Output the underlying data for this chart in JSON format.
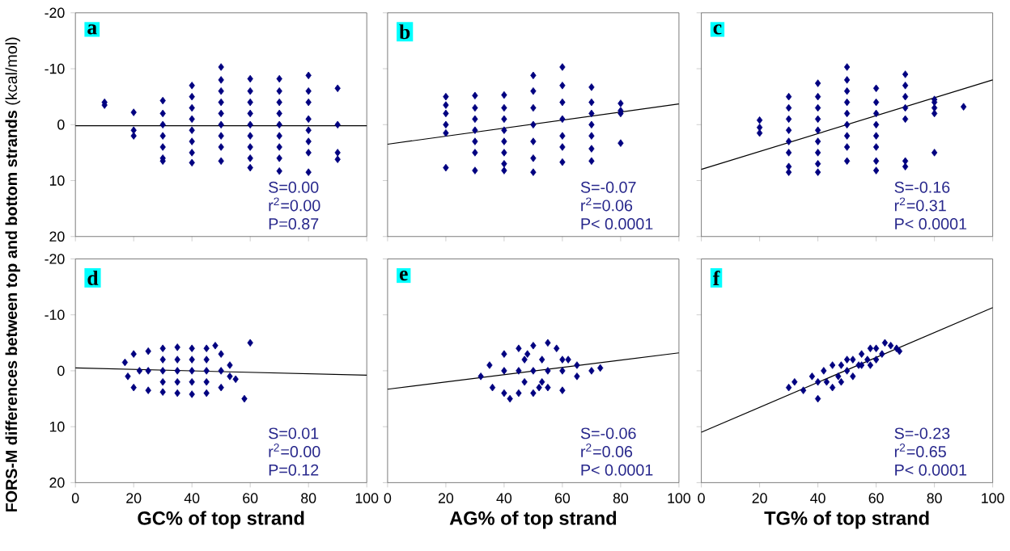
{
  "chart_data": [
    {
      "type": "scatter",
      "title": "a",
      "ylabel": "**FORS-M differences between top and bottom strands** (kcal/mol)",
      "xlim": [
        0,
        100
      ],
      "xticks": [
        0,
        20,
        40,
        60,
        80,
        100
      ],
      "ylim": [
        20,
        -20
      ],
      "yticks": [
        -20,
        -10,
        0,
        10,
        20
      ],
      "tick_labels": "y",
      "annotations": [
        "S=0.00",
        "r$^{2}$=0.00",
        "P=0.87"
      ],
      "series": [
        {
          "type": "scatter",
          "marker": "diamond",
          "color": "#000080",
          "x": [
            10,
            10,
            20,
            20,
            20,
            30,
            30,
            30,
            30,
            30,
            30,
            30,
            40,
            40,
            40,
            40,
            40,
            40,
            40,
            40,
            50,
            50,
            50,
            50,
            50,
            50,
            50,
            50,
            50,
            60,
            60,
            60,
            60,
            60,
            60,
            60,
            60,
            60,
            70,
            70,
            70,
            70,
            70,
            70,
            70,
            70,
            70,
            80,
            80,
            80,
            80,
            80,
            80,
            80,
            80,
            90,
            90,
            90,
            90
          ],
          "values": [
            -4,
            -3.5,
            -2.2,
            1,
            2,
            -4.3,
            -2,
            0,
            2,
            4,
            6,
            6.5,
            -7,
            -5,
            -3,
            -1,
            1,
            3,
            5,
            6.8,
            -10.3,
            -8,
            -6,
            -4,
            -2,
            0,
            2,
            4,
            6.5,
            -8.2,
            -6,
            -4,
            -2,
            0,
            2,
            4,
            6,
            7.7,
            -8.2,
            -6,
            -4,
            -2,
            0,
            2,
            4,
            6,
            8.3,
            -8.8,
            -6,
            -4,
            -1,
            1,
            3,
            5,
            8.5,
            -6.5,
            0,
            5,
            6.2
          ]
        },
        {
          "type": "line",
          "color": "#000000",
          "x": [
            0,
            100
          ],
          "values": [
            0.2,
            0.2
          ]
        }
      ]
    },
    {
      "type": "scatter",
      "title": "b",
      "xlim": [
        0,
        100
      ],
      "xticks": [
        0,
        20,
        40,
        60,
        80,
        100
      ],
      "ylim": [
        20,
        -20
      ],
      "yticks": [
        -20,
        -10,
        0,
        10,
        20
      ],
      "tick_labels": false,
      "annotations": [
        "S=-0.07",
        "r$^{2}$=0.06",
        "P< 0.0001"
      ],
      "series": [
        {
          "type": "scatter",
          "marker": "diamond",
          "color": "#000080",
          "x": [
            20,
            20,
            20,
            20,
            20,
            20,
            30,
            30,
            30,
            30,
            30,
            30,
            30,
            40,
            40,
            40,
            40,
            40,
            40,
            40,
            40,
            50,
            50,
            50,
            50,
            50,
            50,
            50,
            60,
            60,
            60,
            60,
            60,
            60,
            60,
            70,
            70,
            70,
            70,
            70,
            70,
            70,
            80,
            80,
            80,
            80
          ],
          "values": [
            -5,
            -3.5,
            -2,
            0,
            1.5,
            7.7,
            -5.2,
            -3,
            -1,
            1,
            3,
            5,
            8.2,
            -5.3,
            -3,
            -1,
            1,
            3,
            5,
            7,
            8.2,
            -8.8,
            -6,
            -3,
            0,
            3,
            6,
            8.5,
            -10.3,
            -7,
            -4,
            -1,
            2,
            4,
            6.7,
            -6.7,
            -4,
            -2,
            0,
            2,
            4.3,
            6.5,
            -3.8,
            -2.5,
            -2,
            3.3
          ]
        },
        {
          "type": "line",
          "color": "#000000",
          "x": [
            0,
            100
          ],
          "values": [
            3.5,
            -3.7
          ]
        }
      ]
    },
    {
      "type": "scatter",
      "title": "c",
      "xlim": [
        0,
        100
      ],
      "xticks": [
        0,
        20,
        40,
        60,
        80,
        100
      ],
      "ylim": [
        20,
        -20
      ],
      "yticks": [
        -20,
        -10,
        0,
        10,
        20
      ],
      "tick_labels": false,
      "annotations": [
        "S=-0.16",
        "r$^{2}$=0.31",
        "P< 0.0001"
      ],
      "series": [
        {
          "type": "scatter",
          "marker": "diamond",
          "color": "#000080",
          "x": [
            20,
            20,
            20,
            30,
            30,
            30,
            30,
            30,
            30,
            30,
            30,
            40,
            40,
            40,
            40,
            40,
            40,
            40,
            40,
            40,
            50,
            50,
            50,
            50,
            50,
            50,
            50,
            50,
            50,
            60,
            60,
            60,
            60,
            60,
            60,
            60,
            60,
            70,
            70,
            70,
            70,
            70,
            70,
            70,
            80,
            80,
            80,
            80,
            80,
            90
          ],
          "values": [
            -0.8,
            0.5,
            1.5,
            -5,
            -3,
            -1,
            1,
            3,
            5,
            7.5,
            8.5,
            -7.4,
            -5,
            -3,
            -1,
            1,
            3,
            5,
            7,
            8.5,
            -10.3,
            -8,
            -6,
            -4,
            -2,
            0,
            2,
            4,
            6.5,
            -6.5,
            -4,
            -2,
            0,
            2,
            4,
            6.5,
            8.2,
            -9,
            -7,
            -5,
            -3,
            -1,
            6.5,
            7.5,
            -4.5,
            -4,
            -3,
            -2,
            5,
            -3.2
          ]
        },
        {
          "type": "line",
          "color": "#000000",
          "x": [
            0,
            100
          ],
          "values": [
            8,
            -8
          ]
        }
      ]
    },
    {
      "type": "scatter",
      "title": "d",
      "xlabel": "GC% of top strand",
      "xlim": [
        0,
        100
      ],
      "xticks": [
        0,
        20,
        40,
        60,
        80,
        100
      ],
      "ylim": [
        20,
        -20
      ],
      "yticks": [
        -20,
        -10,
        0,
        10,
        20
      ],
      "annotations": [
        "S=0.01",
        "r$^{2}$=0.00",
        "P=0.12"
      ],
      "series": [
        {
          "type": "scatter",
          "marker": "diamond",
          "color": "#000080",
          "x": [
            17,
            18,
            20,
            20,
            25,
            25,
            30,
            30,
            35,
            35,
            40,
            40,
            45,
            45,
            48,
            50,
            50,
            53,
            53,
            55,
            58,
            60,
            30,
            35,
            40,
            45,
            25,
            50,
            30,
            30,
            40,
            40,
            45,
            45,
            35,
            35,
            22
          ],
          "values": [
            -1.5,
            1,
            -3,
            3,
            -3.5,
            3.5,
            -4,
            3.8,
            -4.2,
            4,
            -4,
            4.2,
            -4,
            4,
            -4.5,
            -3,
            3,
            -1,
            1,
            1.5,
            5,
            -5,
            0,
            0,
            0,
            0,
            0,
            0,
            -2,
            2,
            -2,
            2,
            -2,
            2,
            -2,
            2,
            0
          ]
        },
        {
          "type": "line",
          "color": "#000000",
          "x": [
            0,
            100
          ],
          "values": [
            -0.5,
            0.8
          ]
        }
      ]
    },
    {
      "type": "scatter",
      "title": "e",
      "xlabel": "AG% of top strand",
      "xlim": [
        0,
        100
      ],
      "xticks": [
        0,
        20,
        40,
        60,
        80,
        100
      ],
      "ylim": [
        20,
        -20
      ],
      "yticks": [
        -20,
        -10,
        0,
        10,
        20
      ],
      "tick_labels": "x",
      "annotations": [
        "S=-0.06",
        "r$^{2}$=0.06",
        "P< 0.0001"
      ],
      "series": [
        {
          "type": "scatter",
          "marker": "diamond",
          "color": "#000080",
          "x": [
            32,
            35,
            36,
            40,
            40,
            42,
            45,
            45,
            50,
            50,
            55,
            55,
            58,
            60,
            60,
            62,
            65,
            65,
            70,
            73,
            50,
            45,
            55,
            40,
            60,
            47,
            47,
            53,
            53,
            48,
            52
          ],
          "values": [
            1,
            -1,
            3,
            -3,
            4,
            5,
            -4,
            4,
            -4.5,
            4,
            -5,
            3,
            -4,
            3.5,
            -2,
            -2,
            -1,
            1,
            0,
            -0.5,
            0,
            0,
            0,
            0,
            0,
            2,
            -2,
            2,
            -2,
            -3,
            3
          ]
        },
        {
          "type": "line",
          "color": "#000000",
          "x": [
            0,
            100
          ],
          "values": [
            3.3,
            -3.2
          ]
        }
      ]
    },
    {
      "type": "scatter",
      "title": "f",
      "xlabel": "TG% of top strand",
      "xlim": [
        0,
        100
      ],
      "xticks": [
        0,
        20,
        40,
        60,
        80,
        100
      ],
      "ylim": [
        20,
        -20
      ],
      "yticks": [
        -20,
        -10,
        0,
        10,
        20
      ],
      "tick_labels": "x",
      "annotations": [
        "S=-0.23",
        "r$^{2}$=0.65",
        "P< 0.0001"
      ],
      "series": [
        {
          "type": "scatter",
          "marker": "diamond",
          "color": "#000080",
          "x": [
            30,
            32,
            35,
            38,
            40,
            40,
            42,
            45,
            45,
            47,
            48,
            50,
            50,
            52,
            52,
            55,
            55,
            57,
            58,
            60,
            60,
            62,
            63,
            65,
            67,
            68,
            43,
            48,
            54,
            58
          ],
          "values": [
            3,
            2,
            3.5,
            1,
            5,
            2,
            0,
            -1,
            3,
            1,
            -1,
            0,
            -2,
            1,
            -2,
            -1,
            -3,
            -2,
            -4,
            -2,
            -4,
            -3,
            -5,
            -4.5,
            -4,
            -3.5,
            2,
            2,
            -1,
            -1
          ]
        },
        {
          "type": "line",
          "color": "#000000",
          "x": [
            0,
            100
          ],
          "values": [
            11,
            -11.3
          ]
        }
      ]
    }
  ]
}
